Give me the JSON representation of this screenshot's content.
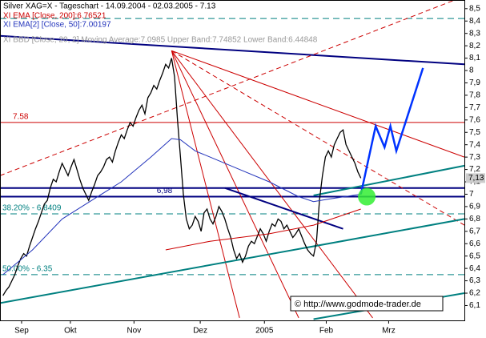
{
  "chart_data": {
    "type": "line",
    "title": "Silver XAG=X - Tageschart - 14.09.2004 - 02.03.2005 - 7.13",
    "indicators": [
      "XI EMA [Close, 200]:6.76521",
      "XI EMA[2] [Close, 50]:7.00197",
      "XI BBD [Close, 20, 2] Moving Average:7.0985 Upper Band:7.74852 Lower Band:6.44848"
    ],
    "watermark": "© http://www.godmode-trader.de",
    "xlim": [
      -1,
      156
    ],
    "ylim": [
      5.98,
      8.57
    ],
    "xticks": [
      {
        "value": 6.3,
        "label": "Sep"
      },
      {
        "value": 22.8,
        "label": "Okt"
      },
      {
        "value": 44.3,
        "label": "Nov"
      },
      {
        "value": 66.7,
        "label": "Dez"
      },
      {
        "value": 88.4,
        "label": "2005"
      },
      {
        "value": 109.3,
        "label": "Feb"
      },
      {
        "value": 130.4,
        "label": "Mrz"
      }
    ],
    "yticks": [
      {
        "value": 6.1,
        "label": "6,1"
      },
      {
        "value": 6.2,
        "label": "6,2"
      },
      {
        "value": 6.3,
        "label": "6,3"
      },
      {
        "value": 6.4,
        "label": "6,4"
      },
      {
        "value": 6.5,
        "label": "6,5"
      },
      {
        "value": 6.6,
        "label": "6,6"
      },
      {
        "value": 6.7,
        "label": "6,7"
      },
      {
        "value": 6.8,
        "label": "6,8"
      },
      {
        "value": 6.9,
        "label": "6,9"
      },
      {
        "value": 7,
        "label": "7"
      },
      {
        "value": 7.1,
        "label": "7,1"
      },
      {
        "value": 7.2,
        "label": "7,2"
      },
      {
        "value": 7.3,
        "label": "7,3"
      },
      {
        "value": 7.4,
        "label": "7,4"
      },
      {
        "value": 7.5,
        "label": "7,5"
      },
      {
        "value": 7.6,
        "label": "7,6"
      },
      {
        "value": 7.7,
        "label": "7,7"
      },
      {
        "value": 7.8,
        "label": "7,8"
      },
      {
        "value": 7.9,
        "label": "7,9"
      },
      {
        "value": 8,
        "label": "8"
      },
      {
        "value": 8.1,
        "label": "8,1"
      },
      {
        "value": 8.2,
        "label": "8,2"
      },
      {
        "value": 8.3,
        "label": "8,3"
      },
      {
        "value": 8.4,
        "label": "8,4"
      },
      {
        "value": 8.5,
        "label": "8,5"
      }
    ],
    "series": [
      {
        "color": "#000000",
        "x": [
          0,
          1,
          2,
          3,
          4,
          5,
          6,
          7,
          8,
          9,
          10,
          11,
          12,
          13,
          14,
          15,
          16,
          17,
          18,
          19,
          20,
          21,
          22,
          23,
          24,
          25,
          26,
          27,
          28,
          29,
          30,
          31,
          32,
          33,
          34,
          35,
          36,
          37,
          38,
          39,
          40,
          41,
          42,
          43,
          44,
          45,
          46,
          47,
          48,
          49,
          50,
          51,
          52,
          53,
          54,
          55,
          56,
          57,
          58,
          59,
          60,
          61,
          62,
          63,
          64,
          65,
          66,
          67,
          68,
          69,
          70,
          71,
          72,
          73,
          74,
          75,
          76,
          77,
          78,
          79,
          80,
          81,
          82,
          83,
          84,
          85,
          86,
          87,
          88,
          89,
          90,
          91,
          92,
          93,
          94,
          95,
          96,
          97,
          98,
          99,
          100,
          101,
          102,
          103,
          104,
          105,
          106,
          107,
          108,
          109,
          110,
          111,
          112,
          113,
          114,
          115,
          116,
          117,
          118,
          119,
          120,
          121
        ],
        "values": [
          6.18,
          6.22,
          6.25,
          6.3,
          6.35,
          6.42,
          6.48,
          6.52,
          6.5,
          6.58,
          6.65,
          6.72,
          6.78,
          6.85,
          6.92,
          6.95,
          7.05,
          7.12,
          7.1,
          7.18,
          7.25,
          7.2,
          7.15,
          7.22,
          7.28,
          7.2,
          7.12,
          7.05,
          7.0,
          6.95,
          7.02,
          7.08,
          7.15,
          7.18,
          7.22,
          7.28,
          7.3,
          7.26,
          7.35,
          7.42,
          7.48,
          7.45,
          7.52,
          7.58,
          7.55,
          7.62,
          7.68,
          7.72,
          7.65,
          7.78,
          7.82,
          7.88,
          7.85,
          7.92,
          7.98,
          8.05,
          8.02,
          8.1,
          7.95,
          7.6,
          7.3,
          7.0,
          6.8,
          6.72,
          6.75,
          6.82,
          6.78,
          6.7,
          6.85,
          6.88,
          6.8,
          6.76,
          6.82,
          6.9,
          6.86,
          6.8,
          6.72,
          6.65,
          6.55,
          6.48,
          6.52,
          6.45,
          6.5,
          6.58,
          6.62,
          6.6,
          6.66,
          6.72,
          6.68,
          6.62,
          6.7,
          6.76,
          6.74,
          6.8,
          6.78,
          6.72,
          6.75,
          6.7,
          6.65,
          6.68,
          6.72,
          6.66,
          6.6,
          6.55,
          6.52,
          6.5,
          6.62,
          6.95,
          7.15,
          7.3,
          7.35,
          7.3,
          7.4,
          7.45,
          7.5,
          7.52,
          7.4,
          7.35,
          7.3,
          7.25,
          7.18,
          7.13
        ]
      },
      {
        "color": "#2233bb",
        "x": [
          0,
          10,
          20,
          30,
          40,
          50,
          57,
          60,
          65,
          70,
          80,
          90,
          100,
          105,
          110,
          121
        ],
        "values": [
          6.35,
          6.55,
          6.8,
          6.95,
          7.1,
          7.3,
          7.45,
          7.44,
          7.35,
          7.3,
          7.2,
          7.1,
          6.98,
          6.94,
          6.96,
          7.0
        ]
      },
      {
        "color": "#cc0000",
        "x": [
          55,
          70,
          90,
          105,
          121
        ],
        "values": [
          6.55,
          6.62,
          6.68,
          6.75,
          6.88
        ]
      }
    ],
    "hlines": [
      {
        "value": 8.42,
        "color": "#008080",
        "dash": true
      },
      {
        "value": 7.58,
        "label": "7.58",
        "color": "#cc0000",
        "dash": false
      },
      {
        "value": 7.05,
        "color": "#000080",
        "dash": false
      },
      {
        "value": 6.98,
        "label": "6,98",
        "color": "#000080",
        "dash": false
      },
      {
        "value": 6.8409,
        "label": "38.20% - 6.8409",
        "color": "#008080",
        "dash": true
      },
      {
        "value": 6.35,
        "label": "50.00% - 6.35",
        "color": "#008080",
        "dash": true
      }
    ],
    "trendlines": [
      {
        "x": [
          -1,
          156
        ],
        "values": [
          8.28,
          8.05
        ],
        "color": "#000080",
        "width": 2
      },
      {
        "x": [
          -1,
          156
        ],
        "values": [
          7.15,
          8.6
        ],
        "color": "#cc0000",
        "width": 1,
        "dash": true
      },
      {
        "x": [
          57,
          156
        ],
        "values": [
          8.16,
          7.3
        ],
        "color": "#cc0000",
        "width": 1
      },
      {
        "x": [
          57,
          156
        ],
        "values": [
          8.16,
          6.75
        ],
        "color": "#cc0000",
        "width": 1,
        "dash": true
      },
      {
        "x": [
          57,
          125
        ],
        "values": [
          8.16,
          6.0
        ],
        "color": "#cc0000",
        "width": 1
      },
      {
        "x": [
          57,
          100
        ],
        "values": [
          8.16,
          6.0
        ],
        "color": "#cc0000",
        "width": 1
      },
      {
        "x": [
          57,
          80
        ],
        "values": [
          8.16,
          6.0
        ],
        "color": "#cc0000",
        "width": 1
      },
      {
        "x": [
          75,
          115
        ],
        "values": [
          7.05,
          6.72
        ],
        "color": "#000080",
        "width": 2
      },
      {
        "x": [
          -1,
          156
        ],
        "values": [
          6.12,
          6.8
        ],
        "color": "#008080",
        "width": 2
      },
      {
        "x": [
          105,
          156
        ],
        "values": [
          6.99,
          7.23
        ],
        "color": "#008080",
        "width": 2
      },
      {
        "x": [
          105,
          156
        ],
        "values": [
          5.99,
          6.2
        ],
        "color": "#008080",
        "width": 2
      },
      {
        "x": [
          121,
          126,
          129,
          131,
          133,
          142
        ],
        "values": [
          7.0,
          7.55,
          7.38,
          7.55,
          7.35,
          8.02
        ],
        "color": "#0033ff",
        "width": 2.5
      }
    ],
    "highlight": {
      "x": 123,
      "value": 6.98,
      "color": "#33ee33"
    },
    "last": {
      "value": 7.13,
      "label": "7,13"
    }
  }
}
